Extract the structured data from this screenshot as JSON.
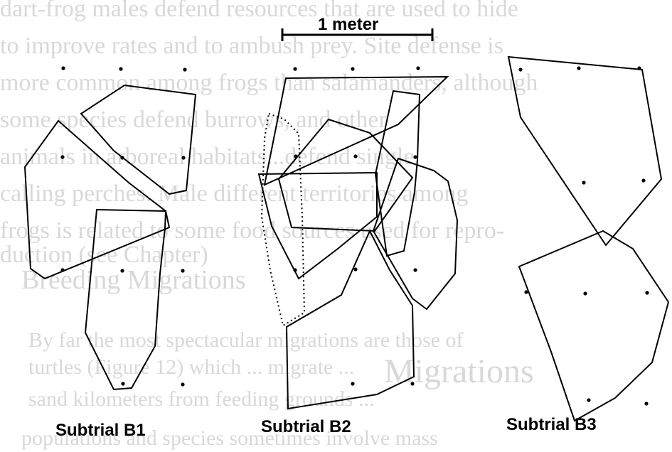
{
  "scale_bar": {
    "label": "1 meter"
  },
  "subtrials": [
    {
      "label": "Subtrial  B1"
    },
    {
      "label": "Subtrial  B2"
    },
    {
      "label": "Subtrial  B3"
    }
  ],
  "background_text": {
    "lines": [
      "dart-frog males defend resources that are used to hide",
      "to improve rates and to ambush prey. Site defense is",
      "more common among frogs than salamanders, although",
      "some species defend burrows, and other",
      "animals in arboreal habitats...defend single",
      "calling perches. Male different territories among",
      "frogs is related to some food sources used for repro-",
      "duction (see Chapter)"
    ],
    "heading": "Breeding Migrations",
    "section_number": "Migrations",
    "lower_lines": [
      "By far the most spectacular migrations are those of",
      "turtles (Figure 12) which ... migrate ...",
      "sand kilometers from feeding grounds ...",
      "populations and species sometimes involve mass"
    ]
  }
}
